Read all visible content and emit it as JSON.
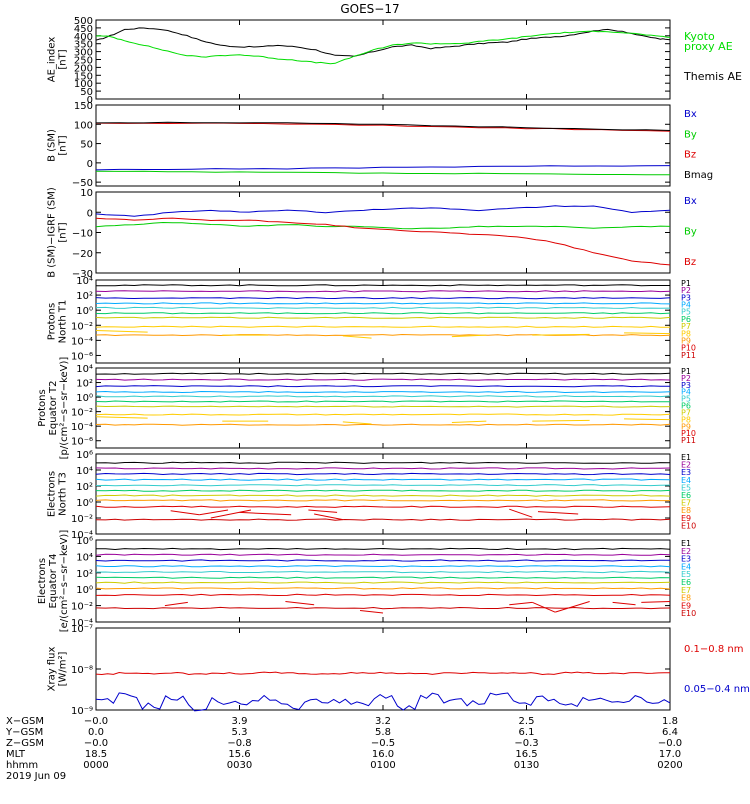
{
  "title": "GOES−17",
  "chart_data": [
    {
      "type": "line",
      "panel": "ae_index",
      "ylabel": [
        "AE_index",
        "[nT]"
      ],
      "ylim": [
        0,
        500
      ],
      "yticks": [
        "0",
        "50",
        "100",
        "150",
        "200",
        "250",
        "300",
        "350",
        "400",
        "450",
        "500"
      ],
      "yticks_values": [
        0,
        50,
        100,
        150,
        200,
        250,
        300,
        350,
        400,
        450,
        500
      ],
      "legend": [
        {
          "text": "Kyoto",
          "color": "#00dd00"
        },
        {
          "text": "proxy AE",
          "color": "#00dd00"
        },
        {
          "text": "Themis AE",
          "color": "#000000"
        }
      ],
      "series": [
        {
          "name": "Themis AE",
          "color": "#000000",
          "x": [
            0,
            3,
            6,
            10,
            14,
            18,
            22,
            26,
            30,
            34,
            38,
            42,
            46,
            50,
            54,
            58,
            62,
            66,
            70,
            74,
            78,
            82,
            86,
            90,
            94,
            98,
            102,
            106,
            110,
            114,
            118,
            120
          ],
          "values": [
            370,
            400,
            440,
            450,
            440,
            410,
            370,
            340,
            330,
            330,
            340,
            330,
            310,
            275,
            270,
            300,
            330,
            340,
            320,
            330,
            345,
            355,
            360,
            380,
            390,
            400,
            420,
            440,
            430,
            400,
            380,
            375
          ]
        },
        {
          "name": "Kyoto proxy AE",
          "color": "#00dd00",
          "x": [
            0,
            3,
            6,
            10,
            14,
            18,
            22,
            26,
            30,
            34,
            38,
            42,
            46,
            50,
            54,
            58,
            62,
            66,
            70,
            74,
            78,
            82,
            86,
            90,
            94,
            98,
            102,
            106,
            110,
            114,
            118,
            120
          ],
          "values": [
            400,
            395,
            370,
            340,
            310,
            280,
            265,
            275,
            280,
            270,
            255,
            245,
            230,
            225,
            270,
            310,
            340,
            355,
            350,
            350,
            355,
            370,
            380,
            395,
            410,
            420,
            425,
            430,
            420,
            410,
            395,
            390
          ]
        }
      ]
    },
    {
      "type": "line",
      "panel": "b_sm",
      "ylabel": [
        "B (SM)",
        "[nT]"
      ],
      "ylim": [
        -60,
        150
      ],
      "yticks": [
        "−50",
        "0",
        "50",
        "100",
        "150"
      ],
      "yticks_values": [
        -50,
        0,
        50,
        100,
        150
      ],
      "legend": [
        {
          "text": "Bx",
          "color": "#0000cc"
        },
        {
          "text": "By",
          "color": "#00cc00"
        },
        {
          "text": "Bz",
          "color": "#dd0000"
        },
        {
          "text": "Bmag",
          "color": "#000000"
        }
      ],
      "series": [
        {
          "name": "Bx",
          "color": "#0000cc",
          "x": [
            0,
            20,
            40,
            60,
            80,
            100,
            120
          ],
          "values": [
            -18,
            -16,
            -15,
            -12,
            -10,
            -8,
            -7
          ]
        },
        {
          "name": "By",
          "color": "#00cc00",
          "x": [
            0,
            20,
            40,
            60,
            80,
            100,
            120
          ],
          "values": [
            -22,
            -24,
            -25,
            -27,
            -28,
            -30,
            -31
          ]
        },
        {
          "name": "Bz",
          "color": "#dd0000",
          "x": [
            0,
            20,
            40,
            60,
            80,
            100,
            120
          ],
          "values": [
            102,
            103,
            101,
            97,
            92,
            87,
            82
          ]
        },
        {
          "name": "Bmag",
          "color": "#000000",
          "x": [
            0,
            20,
            40,
            60,
            80,
            100,
            120
          ],
          "values": [
            104,
            105,
            103,
            99,
            94,
            89,
            84
          ]
        }
      ]
    },
    {
      "type": "line",
      "panel": "b_minus_igrf",
      "ylabel": [
        "B (SM)−IGRF (SM)",
        "[nT]"
      ],
      "ylim": [
        -30,
        10
      ],
      "yticks": [
        "−30",
        "−20",
        "−10",
        "0",
        "10"
      ],
      "yticks_values": [
        -30,
        -20,
        -10,
        0,
        10
      ],
      "legend": [
        {
          "text": "Bx",
          "color": "#0000cc"
        },
        {
          "text": "By",
          "color": "#00cc00"
        },
        {
          "text": "Bz",
          "color": "#dd0000"
        }
      ],
      "series": [
        {
          "name": "Bx",
          "color": "#0000cc",
          "x": [
            0,
            8,
            16,
            24,
            32,
            40,
            48,
            56,
            64,
            72,
            80,
            88,
            96,
            104,
            112,
            120
          ],
          "values": [
            -1,
            -2,
            0,
            1,
            0,
            1,
            0,
            1,
            2,
            2,
            1,
            2,
            3,
            3,
            0,
            1
          ]
        },
        {
          "name": "By",
          "color": "#00cc00",
          "x": [
            0,
            8,
            16,
            24,
            32,
            40,
            48,
            56,
            64,
            72,
            80,
            88,
            96,
            104,
            112,
            120
          ],
          "values": [
            -7,
            -6,
            -5,
            -6,
            -7,
            -6,
            -7,
            -7,
            -8,
            -8,
            -7,
            -7,
            -7,
            -8,
            -7,
            -7
          ]
        },
        {
          "name": "Bz",
          "color": "#dd0000",
          "x": [
            0,
            8,
            16,
            24,
            32,
            40,
            48,
            56,
            64,
            72,
            80,
            88,
            96,
            104,
            112,
            120
          ],
          "values": [
            -3,
            -4,
            -3,
            -4,
            -4,
            -5,
            -6,
            -8,
            -9,
            -10,
            -11,
            -12,
            -15,
            -20,
            -24,
            -26
          ]
        }
      ]
    },
    {
      "type": "line",
      "panel": "protons_t1",
      "ylabel": [
        "Protons",
        "North T1"
      ],
      "log": true,
      "ylim": [
        -7,
        4
      ],
      "yticks": [
        "10⁴",
        "10²",
        "10⁰",
        "10⁻²",
        "10⁻⁴",
        "10⁻⁶"
      ],
      "yticks_values": [
        4,
        2,
        0,
        -2,
        -4,
        -6
      ],
      "legend": [
        {
          "text": "P1",
          "color": "#000000"
        },
        {
          "text": "P2",
          "color": "#990099"
        },
        {
          "text": "P3",
          "color": "#0000cc"
        },
        {
          "text": "P4",
          "color": "#00aaff"
        },
        {
          "text": "P5",
          "color": "#33cccc"
        },
        {
          "text": "P6",
          "color": "#00cc66"
        },
        {
          "text": "P7",
          "color": "#cccc00"
        },
        {
          "text": "P8",
          "color": "#ffcc00"
        },
        {
          "text": "P9",
          "color": "#ff9900"
        },
        {
          "text": "P10",
          "color": "#dd0000"
        },
        {
          "text": "P11",
          "color": "#cc0000"
        }
      ],
      "levels_log10": [
        3.3,
        2.5,
        1.6,
        0.9,
        0.3,
        -0.4,
        -1.0,
        -2.2,
        -3.3
      ]
    },
    {
      "type": "line",
      "panel": "protons_t2",
      "ylabel": [
        "Protons",
        "Equator T2",
        "[p/(cm²−s−sr−keV)]"
      ],
      "log": true,
      "ylim": [
        -7,
        4
      ],
      "yticks": [
        "10⁴",
        "10²",
        "10⁰",
        "10⁻²",
        "10⁻⁴",
        "10⁻⁶"
      ],
      "yticks_values": [
        4,
        2,
        0,
        -2,
        -4,
        -6
      ],
      "legend": [
        {
          "text": "P1",
          "color": "#000000"
        },
        {
          "text": "P2",
          "color": "#990099"
        },
        {
          "text": "P3",
          "color": "#0000cc"
        },
        {
          "text": "P4",
          "color": "#00aaff"
        },
        {
          "text": "P5",
          "color": "#33cccc"
        },
        {
          "text": "P6",
          "color": "#00cc66"
        },
        {
          "text": "P7",
          "color": "#cccc00"
        },
        {
          "text": "P8",
          "color": "#ffcc00"
        },
        {
          "text": "P9",
          "color": "#ff9900"
        },
        {
          "text": "P10",
          "color": "#dd0000"
        },
        {
          "text": "P11",
          "color": "#cc0000"
        }
      ],
      "levels_log10": [
        3.2,
        2.4,
        1.5,
        0.7,
        0.1,
        -0.6,
        -1.3,
        -2.4,
        -3.8
      ]
    },
    {
      "type": "line",
      "panel": "electrons_t3",
      "ylabel": [
        "Electrons",
        "North T3"
      ],
      "log": true,
      "ylim": [
        -4,
        6
      ],
      "yticks": [
        "10⁶",
        "10⁴",
        "10²",
        "10⁰",
        "10⁻²",
        "10⁻⁴"
      ],
      "yticks_values": [
        6,
        4,
        2,
        0,
        -2,
        -4
      ],
      "legend": [
        {
          "text": "E1",
          "color": "#000000"
        },
        {
          "text": "E2",
          "color": "#990099"
        },
        {
          "text": "E3",
          "color": "#0000cc"
        },
        {
          "text": "E4",
          "color": "#00aaff"
        },
        {
          "text": "E5",
          "color": "#33cccc"
        },
        {
          "text": "E6",
          "color": "#00cc66"
        },
        {
          "text": "E7",
          "color": "#cccc00"
        },
        {
          "text": "E8",
          "color": "#ff9900"
        },
        {
          "text": "E9",
          "color": "#dd0000"
        },
        {
          "text": "E10",
          "color": "#cc0000"
        }
      ],
      "levels_log10": [
        4.9,
        4.2,
        3.5,
        2.8,
        2.1,
        1.4,
        0.8,
        0.2,
        -0.6,
        -2.2
      ]
    },
    {
      "type": "line",
      "panel": "electrons_t4",
      "ylabel": [
        "Electrons",
        "Equator T4",
        "[e/(cm²−s−sr−keV)]"
      ],
      "log": true,
      "ylim": [
        -4,
        6
      ],
      "yticks": [
        "10⁶",
        "10⁴",
        "10²",
        "10⁰",
        "10⁻²",
        "10⁻⁴"
      ],
      "yticks_values": [
        6,
        4,
        2,
        0,
        -2,
        -4
      ],
      "legend": [
        {
          "text": "E1",
          "color": "#000000"
        },
        {
          "text": "E2",
          "color": "#990099"
        },
        {
          "text": "E3",
          "color": "#0000cc"
        },
        {
          "text": "E4",
          "color": "#00aaff"
        },
        {
          "text": "E5",
          "color": "#33cccc"
        },
        {
          "text": "E6",
          "color": "#00cc66"
        },
        {
          "text": "E7",
          "color": "#cccc00"
        },
        {
          "text": "E8",
          "color": "#ff9900"
        },
        {
          "text": "E9",
          "color": "#dd0000"
        },
        {
          "text": "E10",
          "color": "#cc0000"
        }
      ],
      "levels_log10": [
        4.9,
        4.2,
        3.5,
        2.8,
        2.1,
        1.4,
        0.8,
        0.1,
        -0.7,
        -2.3
      ]
    },
    {
      "type": "line",
      "panel": "xray",
      "ylabel": [
        "Xray flux",
        "[W/m²]"
      ],
      "log": true,
      "ylim": [
        -9,
        -7
      ],
      "yticks": [
        "10⁻⁷",
        "10⁻⁸",
        "10⁻⁹"
      ],
      "yticks_values": [
        -7,
        -8,
        -9
      ],
      "legend": [
        {
          "text": "0.1−0.8 nm",
          "color": "#dd0000"
        },
        {
          "text": "0.05−0.4 nm",
          "color": "#0000cc"
        }
      ],
      "series": [
        {
          "name": "0.1−0.8 nm",
          "color": "#dd0000",
          "log10_values": [
            -8.12,
            -8.1,
            -8.11,
            -8.09,
            -8.12,
            -8.1,
            -8.11,
            -8.09,
            -8.1,
            -8.12,
            -8.11,
            -8.1,
            -8.09,
            -8.11,
            -8.12,
            -8.1,
            -8.09,
            -8.11,
            -8.1,
            -8.12,
            -8.09,
            -8.1,
            -8.11,
            -8.1,
            -8.09
          ]
        },
        {
          "name": "0.05−0.4 nm",
          "color": "#0000cc",
          "log10_values": [
            -8.8,
            -8.66,
            -8.9,
            -8.72,
            -8.95,
            -8.78,
            -8.85,
            -8.7,
            -8.92,
            -8.8,
            -8.75,
            -8.88,
            -8.7,
            -8.92,
            -8.68,
            -8.78,
            -8.86,
            -8.66,
            -8.82,
            -8.74,
            -8.9,
            -8.7,
            -8.84,
            -8.72,
            -8.8
          ]
        }
      ]
    }
  ],
  "xaxis": {
    "row_labels": [
      "X−GSM",
      "Y−GSM",
      "Z−GSM",
      "MLT",
      "hhmm",
      "2019 Jun 09"
    ],
    "columns": [
      {
        "x": "−0.0",
        "y": "0.0",
        "z": "−0.0",
        "mlt": "18.5",
        "hhmm": "0000"
      },
      {
        "x": "3.9",
        "y": "5.3",
        "z": "−0.8",
        "mlt": "15.6",
        "hhmm": "0030"
      },
      {
        "x": "3.2",
        "y": "5.8",
        "z": "−0.5",
        "mlt": "16.0",
        "hhmm": "0100"
      },
      {
        "x": "2.5",
        "y": "6.1",
        "z": "−0.3",
        "mlt": "16.5",
        "hhmm": "0130"
      },
      {
        "x": "1.8",
        "y": "6.4",
        "z": "−0.0",
        "mlt": "17.0",
        "hhmm": "0200"
      }
    ]
  }
}
